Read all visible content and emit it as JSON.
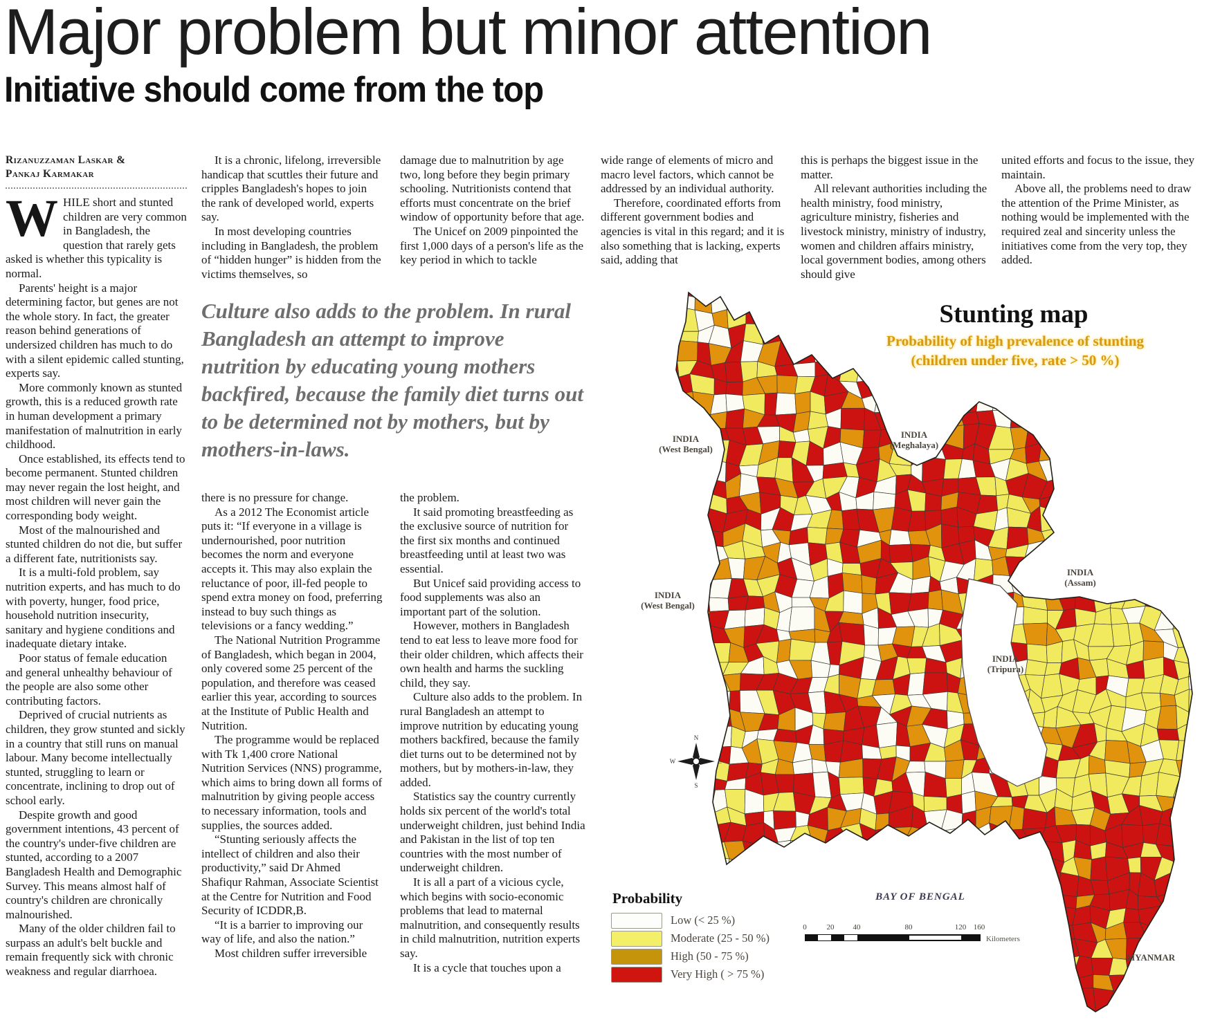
{
  "masthead": {
    "title": "Major problem but minor attention",
    "subtitle": "Initiative should come from the top"
  },
  "byline": {
    "author1": "Rizanuzzaman Laskar &",
    "author2": "Pankaj Karmakar"
  },
  "article": {
    "drop_cap": "W",
    "col1_first": "HILE short and stunted children are very common in Bangladesh, the question that rarely gets asked is whether this typicality is normal.",
    "col1": [
      "Parents' height is a major determining factor, but genes are not the whole story. In fact, the greater reason behind generations of undersized children has much to do with a silent epidemic called stunting, experts say.",
      "More commonly known as stunted growth, this is a reduced growth rate in human development a primary manifestation of malnutrition in early childhood.",
      "Once established, its effects tend to become permanent. Stunted children may never regain the lost height, and most children will never gain the corresponding body weight.",
      "Most of the malnourished and stunted children do not die, but suffer a different fate, nutritionists say.",
      "It is a multi-fold problem, say nutrition experts, and has much to do with poverty, hunger, food price, household nutrition insecurity, sanitary and hygiene conditions and inadequate dietary intake.",
      "Poor status of female education and general unhealthy behaviour of the people are also some other contributing factors.",
      "Deprived of crucial nutrients as children, they grow stunted and sickly in a country that still runs on manual labour. Many become intellectually stunted, struggling to learn or concentrate, inclining to drop out of school early.",
      "Despite growth and good government intentions, 43 percent of the country's under-five children are stunted, according to a 2007 Bangladesh Health and Demographic Survey. This means almost half of country's children are chronically malnourished.",
      "Many of the older children fail to surpass an adult's belt buckle and remain frequently sick with chronic weakness and regular diarrhoea."
    ],
    "col2_top": [
      "It is a chronic, lifelong, irreversible handicap that scuttles their future and cripples Bangladesh's hopes to join the rank of developed world, experts say.",
      "In most developing countries including in Bangladesh, the problem of “hidden hunger” is hidden from the victims themselves, so"
    ],
    "pull_quote": "Culture also adds to the problem. In rural Bangladesh an attempt to improve nutrition by educating young mothers backfired, because the family diet turns out to be determined not by mothers, but by mothers-in-laws.",
    "col2_bottom": [
      "there is no pressure for change.",
      "As a 2012 The Economist article puts it: “If everyone in a village is undernourished, poor nutrition becomes the norm and everyone accepts it. This may also explain the reluctance of poor, ill-fed people to spend extra money on food, preferring instead to buy such things as televisions or a fancy wedding.”",
      "The National Nutrition Programme of Bangladesh, which began in 2004, only covered some 25 percent of the population, and therefore was ceased earlier this year, according to sources at the Institute of Public Health and Nutrition.",
      "The programme would be replaced with Tk 1,400 crore National Nutrition Services (NNS) programme, which aims to bring down all forms of malnutrition by giving people access to necessary information, tools and supplies, the sources added.",
      "“Stunting seriously affects the intellect of children and also their productivity,” said Dr Ahmed Shafiqur Rahman, Associate Scientist at the Centre for Nutrition and Food Security of ICDDR,B.",
      "“It is a barrier to improving our way of life, and also the nation.”",
      "Most children suffer irreversible"
    ],
    "col3_top": [
      "damage due to malnutrition by age two, long before they begin primary schooling. Nutritionists contend that efforts must concentrate on the brief window of opportunity before that age.",
      "The Unicef on 2009 pinpointed the first 1,000 days of a person's life as the key period in which to tackle"
    ],
    "col3_bottom": [
      "the problem.",
      "It said promoting breastfeeding as the exclusive source of nutrition for the first six months and continued breastfeeding until at least two was essential.",
      "But Unicef said providing access to food supplements was also an important part of the solution.",
      "However, mothers in Bangladesh tend to eat less to leave more food for their older children, which affects their own health and harms the suckling child, they say.",
      "Culture also adds to the problem. In rural Bangladesh an attempt to improve nutrition by educating young mothers backfired, because the family diet turns out to be determined not by mothers, but by mothers-in-law, they added.",
      "Statistics say the country currently holds six percent of the world's total underweight children, just behind India and Pakistan in the list of top ten countries with the most number of underweight children.",
      "It is all a part of a vicious cycle, which begins with socio-economic problems that lead to maternal malnutrition, and consequently results in child malnutrition, nutrition experts say.",
      "It is a cycle that touches upon a"
    ],
    "col4_top": [
      "wide range of elements of micro and macro level factors, which cannot be addressed by an individual authority.",
      "Therefore, coordinated efforts from different government bodies and agencies is vital in this regard; and it is also something that is lacking, experts said, adding that"
    ],
    "col5_top": [
      "this is perhaps the biggest issue in the matter.",
      "All relevant authorities  including the health ministry, food ministry, agriculture ministry, fisheries and livestock ministry, ministry of industry, women and children affairs ministry, local government bodies, among others  should give"
    ],
    "col6_top": [
      "united efforts and focus to the issue, they maintain.",
      "Above all, the problems need to draw the attention of the Prime Minister, as nothing would be implemented with the required zeal and sincerity unless the initiatives come from the very top, they added."
    ]
  },
  "map": {
    "title": "Stunting map",
    "subtitle_line1": "Probability of high prevalence of stunting",
    "subtitle_line2": "(children under five, rate > 50 %)",
    "labels": {
      "india_wb_north": "INDIA\n(West Bengal)",
      "india_meghalaya": "INDIA\n(Meghalaya)",
      "india_wb_south": "INDIA\n(West Bengal)",
      "india_assam": "INDIA\n(Assam)",
      "india_tripura": "INDIA\n(Tripura)",
      "myanmar": "MYANMAR",
      "bay_of_bengal": "BAY OF BENGAL"
    },
    "legend": {
      "title": "Probability",
      "items": [
        {
          "label": "Low (< 25 %)",
          "color": "#FDFDFB"
        },
        {
          "label": "Moderate (25 - 50 %)",
          "color": "#F4EF69"
        },
        {
          "label": "High (50 - 75 %)",
          "color": "#C6940A"
        },
        {
          "label": "Very High ( > 75 %)",
          "color": "#D01410"
        }
      ]
    },
    "scale": {
      "ticks": [
        "0",
        "20",
        "40",
        "80",
        "120",
        "160"
      ],
      "unit": "Kilometers"
    },
    "palette": {
      "white": "#FCFCF5",
      "yellow": "#F1E95E",
      "orange": "#E2930D",
      "red": "#CD1312"
    }
  }
}
